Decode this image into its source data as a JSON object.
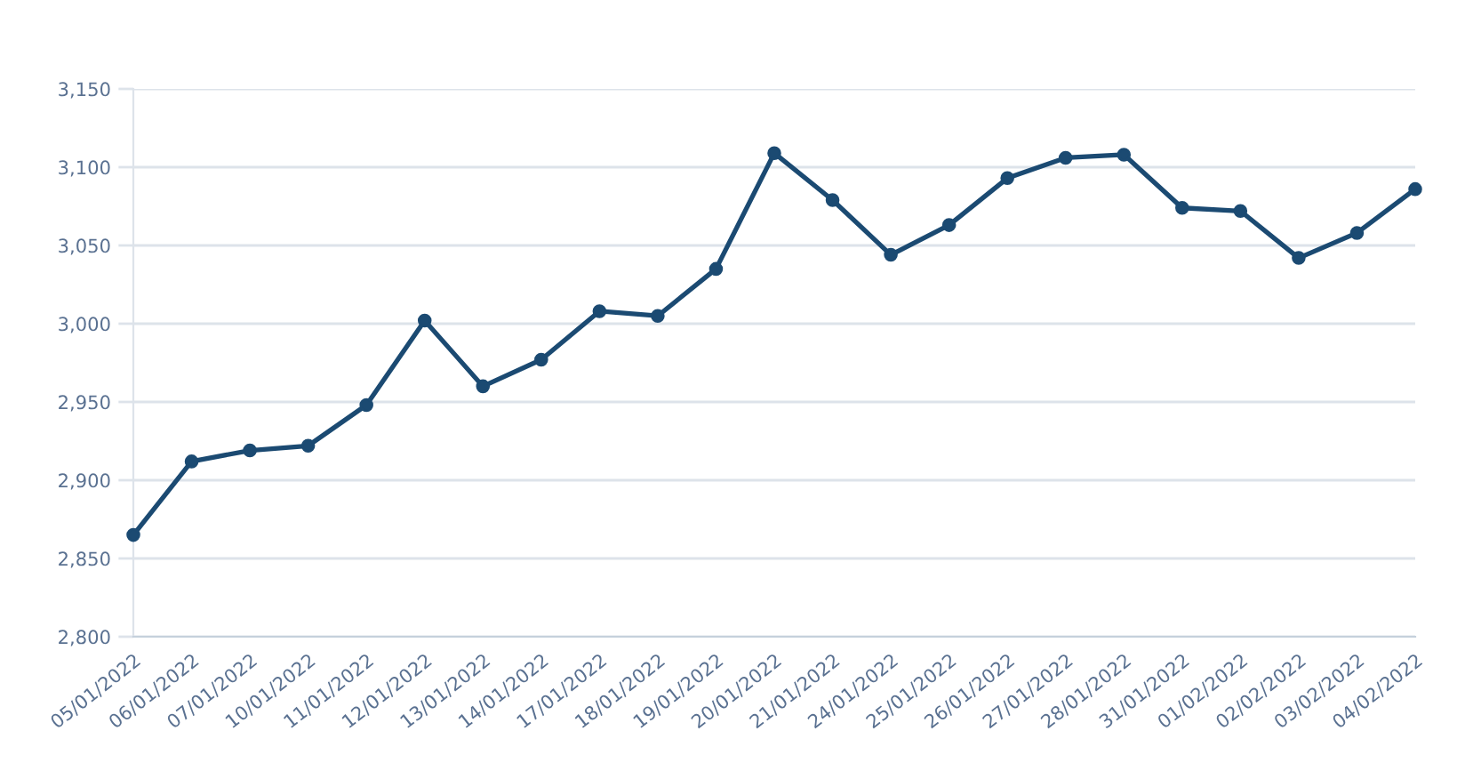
{
  "chart_data": {
    "type": "line",
    "categories": [
      "05/01/2022",
      "06/01/2022",
      "07/01/2022",
      "10/01/2022",
      "11/01/2022",
      "12/01/2022",
      "13/01/2022",
      "14/01/2022",
      "17/01/2022",
      "18/01/2022",
      "19/01/2022",
      "20/01/2022",
      "21/01/2022",
      "24/01/2022",
      "25/01/2022",
      "26/01/2022",
      "27/01/2022",
      "28/01/2022",
      "31/01/2022",
      "01/02/2022",
      "02/02/2022",
      "03/02/2022",
      "04/02/2022"
    ],
    "series": [
      {
        "color": "#1b4a72",
        "values": [
          2865,
          2912,
          2919,
          2922,
          2948,
          3002,
          2960,
          2977,
          3008,
          3005,
          3035,
          3109,
          3079,
          3044,
          3063,
          3093,
          3106,
          3108,
          3074,
          3072,
          3042,
          3058,
          3086
        ]
      }
    ],
    "ylim": [
      2800,
      3150
    ],
    "yticks": [
      {
        "value": 2800,
        "label": "2,800"
      },
      {
        "value": 2850,
        "label": "2,850"
      },
      {
        "value": 2900,
        "label": "2,900"
      },
      {
        "value": 2950,
        "label": "2,950"
      },
      {
        "value": 3000,
        "label": "3,000"
      },
      {
        "value": 3050,
        "label": "3,050"
      },
      {
        "value": 3100,
        "label": "3,100"
      },
      {
        "value": 3150,
        "label": "3,150"
      }
    ],
    "grid": "y",
    "marker": "circle",
    "line_style": "solid"
  }
}
